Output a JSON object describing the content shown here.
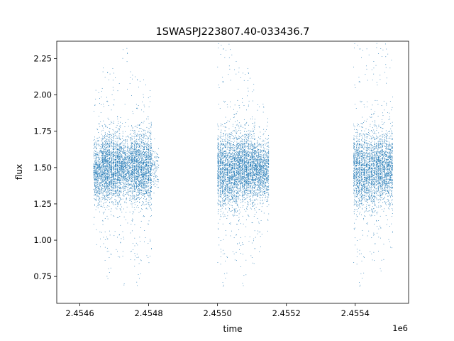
{
  "chart_data": {
    "type": "scatter",
    "title": "1SWASPJ223807.40-033436.7",
    "xlabel": "time",
    "ylabel": "flux",
    "x_offset_label": "1e6",
    "x_tick_labels": [
      "2.4546",
      "2.4548",
      "2.4550",
      "2.4552",
      "2.4554"
    ],
    "x_ticks": [
      2454600,
      2454800,
      2455000,
      2455200,
      2455400
    ],
    "y_tick_labels": [
      "0.75",
      "1.00",
      "1.25",
      "1.50",
      "1.75",
      "2.00",
      "2.25"
    ],
    "y_ticks": [
      0.75,
      1.0,
      1.25,
      1.5,
      1.75,
      2.0,
      2.25
    ],
    "xlim": [
      2454533,
      2455555
    ],
    "ylim": [
      0.565,
      2.37
    ],
    "grid": false,
    "point_color": "#1f77b4",
    "series_clusters": [
      {
        "x": [
          2454640,
          2454665
        ],
        "y_center": 1.48,
        "y_spread": 0.18,
        "y_min": 0.95,
        "y_max": 2.05,
        "density": 600
      },
      {
        "x": [
          2454665,
          2454720
        ],
        "y_center": 1.5,
        "y_spread": 0.2,
        "y_min": 0.7,
        "y_max": 2.2,
        "density": 1800
      },
      {
        "x": [
          2454720,
          2454750
        ],
        "y_center": 1.5,
        "y_spread": 0.17,
        "y_min": 0.66,
        "y_max": 2.34,
        "density": 700
      },
      {
        "x": [
          2454750,
          2454810
        ],
        "y_center": 1.5,
        "y_spread": 0.2,
        "y_min": 0.66,
        "y_max": 2.15,
        "density": 1800
      },
      {
        "x": [
          2454810,
          2454830
        ],
        "y_center": 1.5,
        "y_spread": 0.12,
        "y_min": 1.2,
        "y_max": 1.8,
        "density": 100
      },
      {
        "x": [
          2455000,
          2455060
        ],
        "y_center": 1.48,
        "y_spread": 0.22,
        "y_min": 0.65,
        "y_max": 2.37,
        "density": 1800
      },
      {
        "x": [
          2455060,
          2455110
        ],
        "y_center": 1.5,
        "y_spread": 0.2,
        "y_min": 0.65,
        "y_max": 2.2,
        "density": 1600
      },
      {
        "x": [
          2455110,
          2455150
        ],
        "y_center": 1.48,
        "y_spread": 0.16,
        "y_min": 0.9,
        "y_max": 1.95,
        "density": 1000
      },
      {
        "x": [
          2455395,
          2455460
        ],
        "y_center": 1.48,
        "y_spread": 0.22,
        "y_min": 0.65,
        "y_max": 2.37,
        "density": 1800
      },
      {
        "x": [
          2455460,
          2455510
        ],
        "y_center": 1.5,
        "y_spread": 0.2,
        "y_min": 0.75,
        "y_max": 2.37,
        "density": 1400
      }
    ]
  }
}
